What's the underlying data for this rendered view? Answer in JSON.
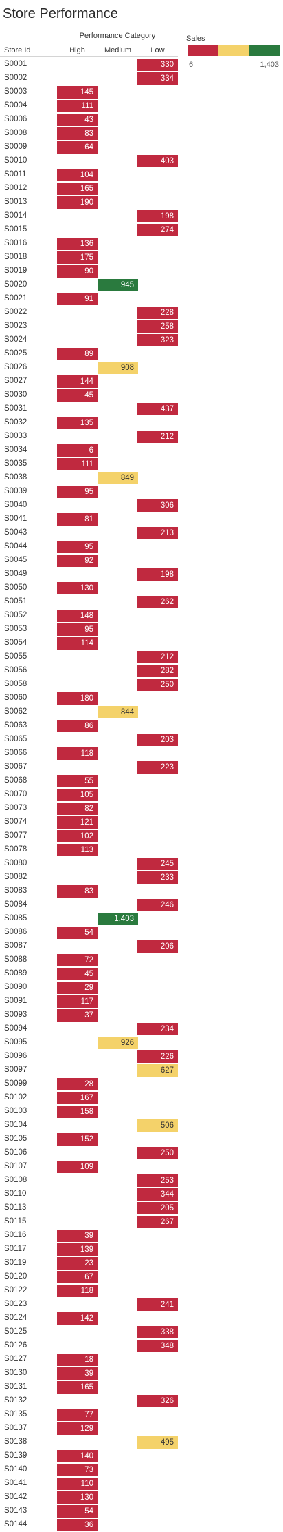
{
  "chart_data": {
    "type": "table",
    "title": "Store Performance",
    "column_group_label": "Performance Category",
    "row_header": "Store Id",
    "columns": [
      "High",
      "Medium",
      "Low"
    ],
    "legend": {
      "title": "Sales",
      "min_label": "6",
      "max_label": "1,403",
      "colors": [
        "#c0293f",
        "#f4d26a",
        "#2a7a3e"
      ]
    },
    "color_scale": {
      "low": "#c0293f",
      "mid": "#f4d26a",
      "high": "#2a7a3e",
      "mid_threshold": 480,
      "high_threshold": 930
    },
    "rows": [
      {
        "store": "S0001",
        "col": 2,
        "value": 330
      },
      {
        "store": "S0002",
        "col": 2,
        "value": 334
      },
      {
        "store": "S0003",
        "col": 0,
        "value": 145
      },
      {
        "store": "S0004",
        "col": 0,
        "value": 111
      },
      {
        "store": "S0006",
        "col": 0,
        "value": 43
      },
      {
        "store": "S0008",
        "col": 0,
        "value": 83
      },
      {
        "store": "S0009",
        "col": 0,
        "value": 64
      },
      {
        "store": "S0010",
        "col": 2,
        "value": 403
      },
      {
        "store": "S0011",
        "col": 0,
        "value": 104
      },
      {
        "store": "S0012",
        "col": 0,
        "value": 165
      },
      {
        "store": "S0013",
        "col": 0,
        "value": 190
      },
      {
        "store": "S0014",
        "col": 2,
        "value": 198
      },
      {
        "store": "S0015",
        "col": 2,
        "value": 274
      },
      {
        "store": "S0016",
        "col": 0,
        "value": 136
      },
      {
        "store": "S0018",
        "col": 0,
        "value": 175
      },
      {
        "store": "S0019",
        "col": 0,
        "value": 90
      },
      {
        "store": "S0020",
        "col": 1,
        "value": 945
      },
      {
        "store": "S0021",
        "col": 0,
        "value": 91
      },
      {
        "store": "S0022",
        "col": 2,
        "value": 228
      },
      {
        "store": "S0023",
        "col": 2,
        "value": 258
      },
      {
        "store": "S0024",
        "col": 2,
        "value": 323
      },
      {
        "store": "S0025",
        "col": 0,
        "value": 89
      },
      {
        "store": "S0026",
        "col": 1,
        "value": 908
      },
      {
        "store": "S0027",
        "col": 0,
        "value": 144
      },
      {
        "store": "S0030",
        "col": 0,
        "value": 45
      },
      {
        "store": "S0031",
        "col": 2,
        "value": 437
      },
      {
        "store": "S0032",
        "col": 0,
        "value": 135
      },
      {
        "store": "S0033",
        "col": 2,
        "value": 212
      },
      {
        "store": "S0034",
        "col": 0,
        "value": 6
      },
      {
        "store": "S0035",
        "col": 0,
        "value": 111
      },
      {
        "store": "S0038",
        "col": 1,
        "value": 849
      },
      {
        "store": "S0039",
        "col": 0,
        "value": 95
      },
      {
        "store": "S0040",
        "col": 2,
        "value": 306
      },
      {
        "store": "S0041",
        "col": 0,
        "value": 81
      },
      {
        "store": "S0043",
        "col": 2,
        "value": 213
      },
      {
        "store": "S0044",
        "col": 0,
        "value": 95
      },
      {
        "store": "S0045",
        "col": 0,
        "value": 92
      },
      {
        "store": "S0049",
        "col": 2,
        "value": 198
      },
      {
        "store": "S0050",
        "col": 0,
        "value": 130
      },
      {
        "store": "S0051",
        "col": 2,
        "value": 262
      },
      {
        "store": "S0052",
        "col": 0,
        "value": 148
      },
      {
        "store": "S0053",
        "col": 0,
        "value": 95
      },
      {
        "store": "S0054",
        "col": 0,
        "value": 114
      },
      {
        "store": "S0055",
        "col": 2,
        "value": 212
      },
      {
        "store": "S0056",
        "col": 2,
        "value": 282
      },
      {
        "store": "S0058",
        "col": 2,
        "value": 250
      },
      {
        "store": "S0060",
        "col": 0,
        "value": 180
      },
      {
        "store": "S0062",
        "col": 1,
        "value": 844
      },
      {
        "store": "S0063",
        "col": 0,
        "value": 86
      },
      {
        "store": "S0065",
        "col": 2,
        "value": 203
      },
      {
        "store": "S0066",
        "col": 0,
        "value": 118
      },
      {
        "store": "S0067",
        "col": 2,
        "value": 223
      },
      {
        "store": "S0068",
        "col": 0,
        "value": 55
      },
      {
        "store": "S0070",
        "col": 0,
        "value": 105
      },
      {
        "store": "S0073",
        "col": 0,
        "value": 82
      },
      {
        "store": "S0074",
        "col": 0,
        "value": 121
      },
      {
        "store": "S0077",
        "col": 0,
        "value": 102
      },
      {
        "store": "S0078",
        "col": 0,
        "value": 113
      },
      {
        "store": "S0080",
        "col": 2,
        "value": 245
      },
      {
        "store": "S0082",
        "col": 2,
        "value": 233
      },
      {
        "store": "S0083",
        "col": 0,
        "value": 83
      },
      {
        "store": "S0084",
        "col": 2,
        "value": 246
      },
      {
        "store": "S0085",
        "col": 1,
        "value": 1403
      },
      {
        "store": "S0086",
        "col": 0,
        "value": 54
      },
      {
        "store": "S0087",
        "col": 2,
        "value": 206
      },
      {
        "store": "S0088",
        "col": 0,
        "value": 72
      },
      {
        "store": "S0089",
        "col": 0,
        "value": 45
      },
      {
        "store": "S0090",
        "col": 0,
        "value": 29
      },
      {
        "store": "S0091",
        "col": 0,
        "value": 117
      },
      {
        "store": "S0093",
        "col": 0,
        "value": 37
      },
      {
        "store": "S0094",
        "col": 2,
        "value": 234
      },
      {
        "store": "S0095",
        "col": 1,
        "value": 926
      },
      {
        "store": "S0096",
        "col": 2,
        "value": 226
      },
      {
        "store": "S0097",
        "col": 2,
        "value": 627
      },
      {
        "store": "S0099",
        "col": 0,
        "value": 28
      },
      {
        "store": "S0102",
        "col": 0,
        "value": 167
      },
      {
        "store": "S0103",
        "col": 0,
        "value": 158
      },
      {
        "store": "S0104",
        "col": 2,
        "value": 506
      },
      {
        "store": "S0105",
        "col": 0,
        "value": 152
      },
      {
        "store": "S0106",
        "col": 2,
        "value": 250
      },
      {
        "store": "S0107",
        "col": 0,
        "value": 109
      },
      {
        "store": "S0108",
        "col": 2,
        "value": 253
      },
      {
        "store": "S0110",
        "col": 2,
        "value": 344
      },
      {
        "store": "S0113",
        "col": 2,
        "value": 205
      },
      {
        "store": "S0115",
        "col": 2,
        "value": 267
      },
      {
        "store": "S0116",
        "col": 0,
        "value": 39
      },
      {
        "store": "S0117",
        "col": 0,
        "value": 139
      },
      {
        "store": "S0119",
        "col": 0,
        "value": 23
      },
      {
        "store": "S0120",
        "col": 0,
        "value": 67
      },
      {
        "store": "S0122",
        "col": 0,
        "value": 118
      },
      {
        "store": "S0123",
        "col": 2,
        "value": 241
      },
      {
        "store": "S0124",
        "col": 0,
        "value": 142
      },
      {
        "store": "S0125",
        "col": 2,
        "value": 338
      },
      {
        "store": "S0126",
        "col": 2,
        "value": 348
      },
      {
        "store": "S0127",
        "col": 0,
        "value": 18
      },
      {
        "store": "S0130",
        "col": 0,
        "value": 39
      },
      {
        "store": "S0131",
        "col": 0,
        "value": 165
      },
      {
        "store": "S0132",
        "col": 2,
        "value": 326
      },
      {
        "store": "S0135",
        "col": 0,
        "value": 77
      },
      {
        "store": "S0137",
        "col": 0,
        "value": 129
      },
      {
        "store": "S0138",
        "col": 2,
        "value": 495
      },
      {
        "store": "S0139",
        "col": 0,
        "value": 140
      },
      {
        "store": "S0140",
        "col": 0,
        "value": 73
      },
      {
        "store": "S0141",
        "col": 0,
        "value": 110
      },
      {
        "store": "S0142",
        "col": 0,
        "value": 130
      },
      {
        "store": "S0143",
        "col": 0,
        "value": 54
      },
      {
        "store": "S0144",
        "col": 0,
        "value": 36
      }
    ]
  }
}
